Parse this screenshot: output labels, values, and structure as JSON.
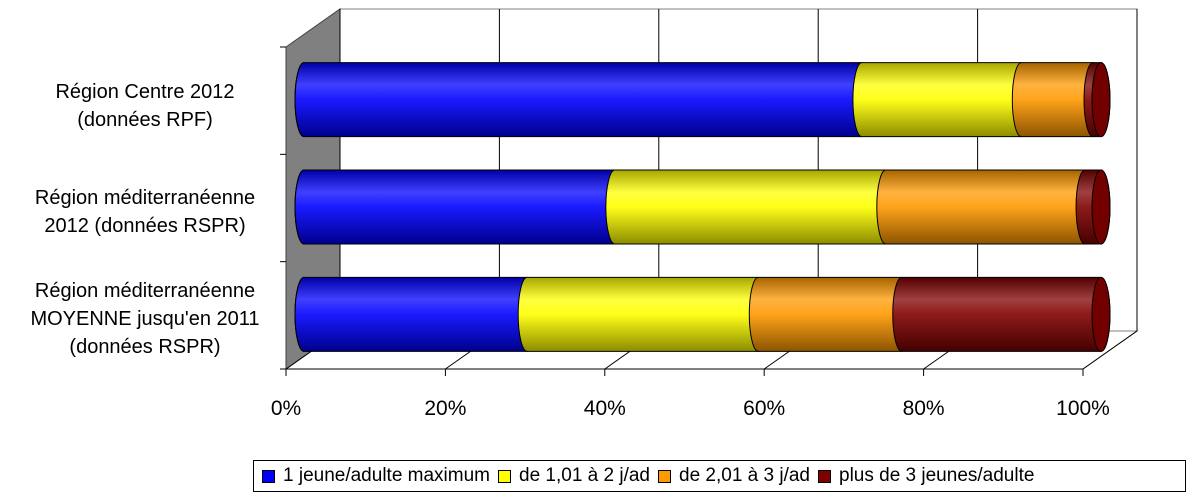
{
  "chart_data": {
    "type": "bar",
    "orientation": "horizontal",
    "stacking": "percent",
    "style": "3d-cylinder",
    "categories": [
      [
        "Région Centre 2012",
        "(données RPF)"
      ],
      [
        "Région méditerranéenne",
        "2012 (données RSPR)"
      ],
      [
        "Région méditerranéenne",
        "MOYENNE jusqu'en 2011",
        "(données RSPR)"
      ]
    ],
    "series": [
      {
        "name": "1 jeune/adulte maximum",
        "color": "#0000ff",
        "values": [
          70,
          39,
          28
        ]
      },
      {
        "name": "de 1,01 à 2 j/ad",
        "color": "#ffff00",
        "values": [
          20,
          34,
          29
        ]
      },
      {
        "name": "de 2,01 à 3 j/ad",
        "color": "#ff9900",
        "values": [
          9,
          25,
          18
        ]
      },
      {
        "name": "plus de 3 jeunes/adulte",
        "color": "#800000",
        "values": [
          1,
          2,
          25
        ]
      }
    ],
    "xticks": [
      "0%",
      "20%",
      "40%",
      "60%",
      "80%",
      "100%"
    ],
    "xlim": [
      0,
      100
    ],
    "grid": true,
    "legend": "bottom"
  }
}
